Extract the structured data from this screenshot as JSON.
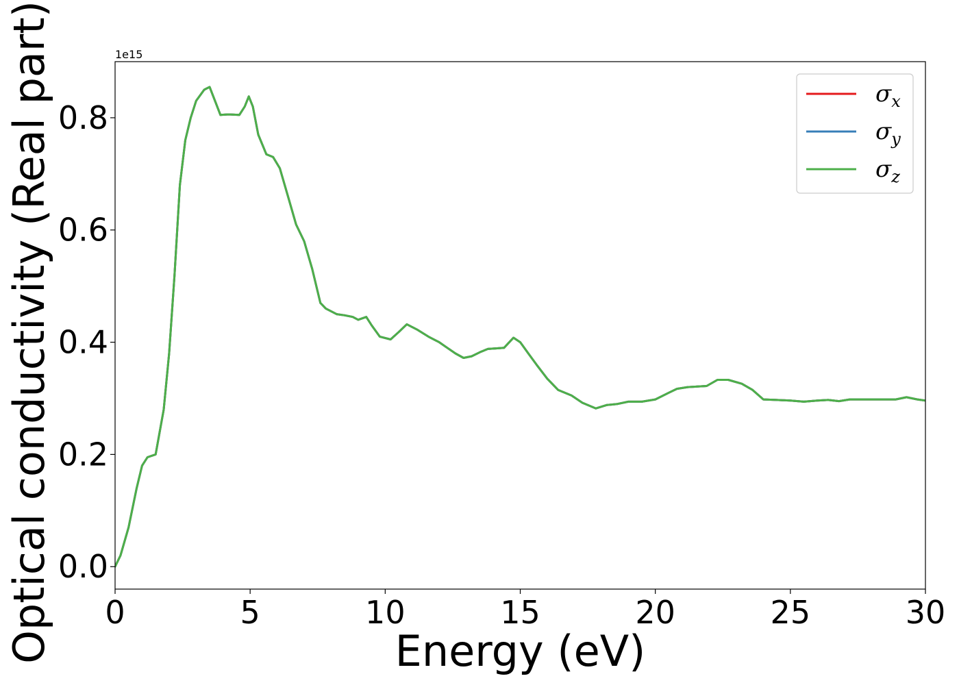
{
  "chart_data": {
    "type": "line",
    "xlabel": "Energy (eV)",
    "ylabel": "Optical conductivity (Real part)",
    "y_offset_label": "1e15",
    "xlim": [
      0,
      30
    ],
    "ylim": [
      -0.04,
      0.9
    ],
    "x_ticks": [
      0,
      5,
      10,
      15,
      20,
      25,
      30
    ],
    "x_tick_labels": [
      "0",
      "5",
      "10",
      "15",
      "20",
      "25",
      "30"
    ],
    "y_ticks": [
      0.0,
      0.2,
      0.4,
      0.6,
      0.8
    ],
    "y_tick_labels": [
      "0.0",
      "0.2",
      "0.4",
      "0.6",
      "0.8"
    ],
    "grid": false,
    "legend_position": "top-right",
    "x": [
      0,
      0.2,
      0.5,
      0.8,
      1.0,
      1.2,
      1.5,
      1.8,
      2.0,
      2.2,
      2.4,
      2.6,
      2.8,
      3.0,
      3.3,
      3.5,
      3.7,
      3.9,
      4.2,
      4.6,
      4.8,
      4.95,
      5.1,
      5.3,
      5.6,
      5.85,
      6.1,
      6.4,
      6.7,
      7.0,
      7.3,
      7.6,
      7.8,
      8.2,
      8.5,
      8.8,
      9.0,
      9.3,
      9.5,
      9.8,
      10.2,
      10.5,
      10.8,
      11.2,
      11.6,
      12.0,
      12.3,
      12.6,
      12.9,
      13.2,
      13.5,
      13.8,
      14.1,
      14.4,
      14.75,
      15.0,
      15.3,
      15.6,
      16.0,
      16.4,
      16.9,
      17.3,
      17.8,
      18.2,
      18.6,
      19.0,
      19.5,
      20.0,
      20.5,
      20.8,
      21.2,
      21.9,
      22.3,
      22.7,
      23.2,
      23.6,
      24.0,
      24.5,
      25.0,
      25.5,
      26.0,
      26.4,
      26.8,
      27.2,
      27.6,
      27.9,
      28.4,
      28.9,
      29.3,
      29.7,
      30.0
    ],
    "series": [
      {
        "name": "σx",
        "color": "#e41a1c",
        "values": [
          0.0,
          0.02,
          0.07,
          0.14,
          0.18,
          0.195,
          0.2,
          0.28,
          0.38,
          0.52,
          0.68,
          0.76,
          0.8,
          0.83,
          0.85,
          0.855,
          0.83,
          0.805,
          0.806,
          0.805,
          0.82,
          0.838,
          0.82,
          0.77,
          0.735,
          0.73,
          0.71,
          0.66,
          0.61,
          0.58,
          0.53,
          0.47,
          0.46,
          0.45,
          0.448,
          0.445,
          0.44,
          0.445,
          0.43,
          0.41,
          0.405,
          0.418,
          0.432,
          0.422,
          0.41,
          0.4,
          0.39,
          0.38,
          0.372,
          0.375,
          0.382,
          0.388,
          0.389,
          0.39,
          0.408,
          0.4,
          0.38,
          0.36,
          0.335,
          0.315,
          0.305,
          0.292,
          0.282,
          0.288,
          0.29,
          0.294,
          0.294,
          0.298,
          0.31,
          0.317,
          0.32,
          0.322,
          0.333,
          0.333,
          0.326,
          0.315,
          0.298,
          0.297,
          0.296,
          0.294,
          0.296,
          0.297,
          0.295,
          0.298,
          0.298,
          0.298,
          0.298,
          0.298,
          0.302,
          0.298,
          0.296
        ]
      },
      {
        "name": "σy",
        "color": "#377eb8",
        "values": [
          0.0,
          0.02,
          0.07,
          0.14,
          0.18,
          0.195,
          0.2,
          0.28,
          0.38,
          0.52,
          0.68,
          0.76,
          0.8,
          0.83,
          0.85,
          0.855,
          0.83,
          0.805,
          0.806,
          0.805,
          0.82,
          0.838,
          0.82,
          0.77,
          0.735,
          0.73,
          0.71,
          0.66,
          0.61,
          0.58,
          0.53,
          0.47,
          0.46,
          0.45,
          0.448,
          0.445,
          0.44,
          0.445,
          0.43,
          0.41,
          0.405,
          0.418,
          0.432,
          0.422,
          0.41,
          0.4,
          0.39,
          0.38,
          0.372,
          0.375,
          0.382,
          0.388,
          0.389,
          0.39,
          0.408,
          0.4,
          0.38,
          0.36,
          0.335,
          0.315,
          0.305,
          0.292,
          0.282,
          0.288,
          0.29,
          0.294,
          0.294,
          0.298,
          0.31,
          0.317,
          0.32,
          0.322,
          0.333,
          0.333,
          0.326,
          0.315,
          0.298,
          0.297,
          0.296,
          0.294,
          0.296,
          0.297,
          0.295,
          0.298,
          0.298,
          0.298,
          0.298,
          0.298,
          0.302,
          0.298,
          0.296
        ]
      },
      {
        "name": "σz",
        "color": "#4daf4a",
        "values": [
          0.0,
          0.02,
          0.07,
          0.14,
          0.18,
          0.195,
          0.2,
          0.28,
          0.38,
          0.52,
          0.68,
          0.76,
          0.8,
          0.83,
          0.85,
          0.855,
          0.83,
          0.805,
          0.806,
          0.805,
          0.82,
          0.838,
          0.82,
          0.77,
          0.735,
          0.73,
          0.71,
          0.66,
          0.61,
          0.58,
          0.53,
          0.47,
          0.46,
          0.45,
          0.448,
          0.445,
          0.44,
          0.445,
          0.43,
          0.41,
          0.405,
          0.418,
          0.432,
          0.422,
          0.41,
          0.4,
          0.39,
          0.38,
          0.372,
          0.375,
          0.382,
          0.388,
          0.389,
          0.39,
          0.408,
          0.4,
          0.38,
          0.36,
          0.335,
          0.315,
          0.305,
          0.292,
          0.282,
          0.288,
          0.29,
          0.294,
          0.294,
          0.298,
          0.31,
          0.317,
          0.32,
          0.322,
          0.333,
          0.333,
          0.326,
          0.315,
          0.298,
          0.297,
          0.296,
          0.294,
          0.296,
          0.297,
          0.295,
          0.298,
          0.298,
          0.298,
          0.298,
          0.298,
          0.302,
          0.298,
          0.296
        ]
      }
    ],
    "legend": [
      {
        "symbol": "σ",
        "sub": "x",
        "color": "#e41a1c"
      },
      {
        "symbol": "σ",
        "sub": "y",
        "color": "#377eb8"
      },
      {
        "symbol": "σ",
        "sub": "z",
        "color": "#4daf4a"
      }
    ]
  }
}
